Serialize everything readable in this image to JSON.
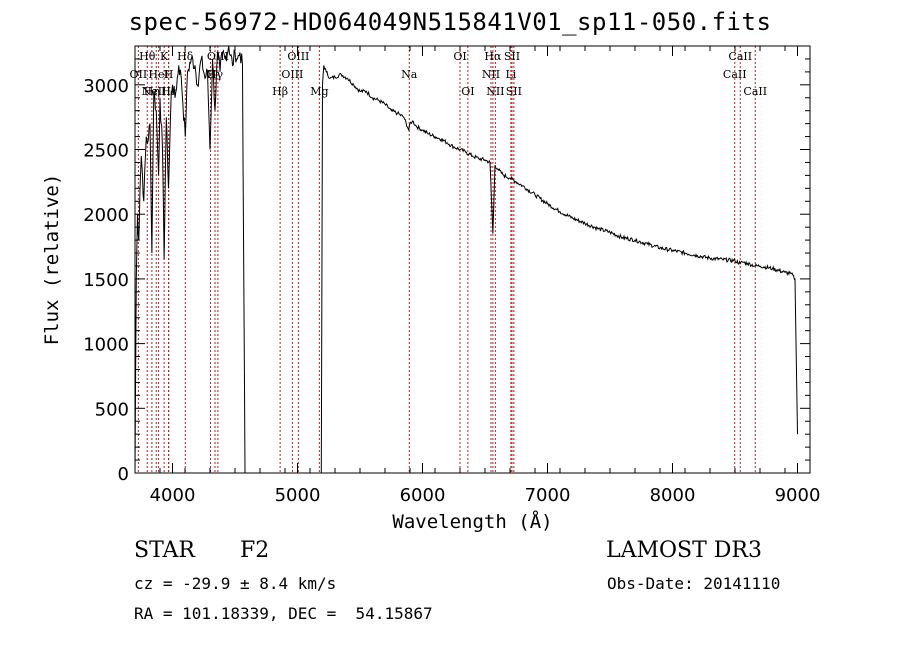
{
  "chart_data": {
    "type": "line",
    "title": "spec-56972-HD064049N515841V01_sp11-050.fits",
    "xlabel": "Wavelength (Å)",
    "ylabel": "Flux (relative)",
    "xlim": [
      3700,
      9100
    ],
    "ylim": [
      0,
      3300
    ],
    "xticks": [
      4000,
      5000,
      6000,
      7000,
      8000,
      9000
    ],
    "yticks": [
      0,
      500,
      1000,
      1500,
      2000,
      2500,
      3000
    ],
    "series": [
      {
        "name": "flux",
        "x": [
          3700,
          3710,
          3720,
          3730,
          3740,
          3750,
          3760,
          3770,
          3790,
          3800,
          3820,
          3835,
          3850,
          3870,
          3889,
          3900,
          3920,
          3933,
          3950,
          3968,
          3990,
          4000,
          4020,
          4050,
          4070,
          4102,
          4120,
          4150,
          4180,
          4200,
          4230,
          4260,
          4280,
          4300,
          4320,
          4340,
          4360,
          4380,
          4400,
          4420,
          4450,
          4480,
          4500,
          4520,
          4540,
          4560,
          4570,
          4580,
          5190,
          5200,
          5210,
          5230,
          5260,
          5300,
          5350,
          5400,
          5450,
          5500,
          5550,
          5600,
          5650,
          5700,
          5750,
          5800,
          5850,
          5890,
          5900,
          5920,
          5950,
          6000,
          6050,
          6100,
          6150,
          6200,
          6250,
          6300,
          6350,
          6400,
          6450,
          6500,
          6540,
          6563,
          6580,
          6600,
          6650,
          6700,
          6750,
          6800,
          6900,
          7000,
          7100,
          7200,
          7300,
          7400,
          7500,
          7600,
          7700,
          7800,
          7900,
          8000,
          8100,
          8200,
          8300,
          8400,
          8500,
          8542,
          8560,
          8600,
          8662,
          8700,
          8800,
          8900,
          8950,
          8980,
          9000
        ],
        "values": [
          0,
          1500,
          2000,
          1800,
          2200,
          2450,
          2300,
          2100,
          2600,
          2550,
          2700,
          1700,
          2950,
          2800,
          2300,
          2900,
          2500,
          1650,
          2750,
          2200,
          2950,
          3000,
          2900,
          3150,
          3050,
          2600,
          3100,
          3200,
          3150,
          3000,
          3200,
          3050,
          3100,
          2500,
          3200,
          2800,
          3250,
          3100,
          3250,
          3200,
          3300,
          3150,
          3250,
          3200,
          3250,
          3150,
          1500,
          0,
          0,
          3000,
          3150,
          3100,
          3050,
          3060,
          3080,
          3050,
          3000,
          2950,
          2950,
          2900,
          2880,
          2850,
          2800,
          2780,
          2750,
          2650,
          2700,
          2720,
          2680,
          2650,
          2620,
          2600,
          2580,
          2550,
          2520,
          2500,
          2480,
          2450,
          2430,
          2420,
          2400,
          1850,
          2380,
          2350,
          2300,
          2280,
          2250,
          2220,
          2150,
          2080,
          2020,
          1970,
          1930,
          1890,
          1860,
          1820,
          1800,
          1770,
          1740,
          1720,
          1700,
          1680,
          1660,
          1650,
          1640,
          1620,
          1630,
          1620,
          1600,
          1600,
          1580,
          1550,
          1540,
          1500,
          300
        ]
      }
    ],
    "lines": [
      {
        "wl": 3727,
        "label": "OII",
        "row": 1,
        "color": "#b22222"
      },
      {
        "wl": 3798,
        "label": "Hθ",
        "row": 0,
        "color": "#b22222"
      },
      {
        "wl": 3835,
        "label": "Hη",
        "row": 2,
        "color": "#b22222"
      },
      {
        "wl": 3870,
        "label": "NeIII",
        "row": 2,
        "color": "#b22222"
      },
      {
        "wl": 3889,
        "label": "HeI",
        "row": 1,
        "color": "#b22222"
      },
      {
        "wl": 3933,
        "label": "K",
        "row": 0,
        "color": "#b22222"
      },
      {
        "wl": 3968,
        "label": "H",
        "row": 1,
        "color": "#b22222"
      },
      {
        "wl": 3970,
        "label": "Hε",
        "row": 2,
        "color": "#b22222"
      },
      {
        "wl": 4102,
        "label": "Hδ",
        "row": 0,
        "color": "#b22222"
      },
      {
        "wl": 4304,
        "label": "G",
        "row": 1,
        "color": "#b22222"
      },
      {
        "wl": 4340,
        "label": "Hγ",
        "row": 1,
        "color": "#b22222"
      },
      {
        "wl": 4363,
        "label": "OIII",
        "row": 0,
        "color": "#b22222"
      },
      {
        "wl": 4861,
        "label": "Hβ",
        "row": 2,
        "color": "#b22222"
      },
      {
        "wl": 4959,
        "label": "OIII",
        "row": 1,
        "color": "#b22222"
      },
      {
        "wl": 5007,
        "label": "OIII",
        "row": 0,
        "color": "#b22222"
      },
      {
        "wl": 5175,
        "label": "Mg",
        "row": 2,
        "color": "#b22222"
      },
      {
        "wl": 5894,
        "label": "Na",
        "row": 1,
        "color": "#b22222"
      },
      {
        "wl": 6300,
        "label": "OI",
        "row": 0,
        "color": "#b22222"
      },
      {
        "wl": 6363,
        "label": "OI",
        "row": 2,
        "color": "#b22222"
      },
      {
        "wl": 6548,
        "label": "NII",
        "row": 1,
        "color": "#b22222"
      },
      {
        "wl": 6563,
        "label": "Hα",
        "row": 0,
        "color": "#b22222"
      },
      {
        "wl": 6583,
        "label": "NII",
        "row": 2,
        "color": "#b22222"
      },
      {
        "wl": 6707,
        "label": "Li",
        "row": 1,
        "color": "#b22222"
      },
      {
        "wl": 6716,
        "label": "SII",
        "row": 0,
        "color": "#b22222"
      },
      {
        "wl": 6731,
        "label": "SII",
        "row": 2,
        "color": "#b22222"
      },
      {
        "wl": 8498,
        "label": "CaII",
        "row": 1,
        "color": "#b22222"
      },
      {
        "wl": 8542,
        "label": "CaII",
        "row": 0,
        "color": "#b22222"
      },
      {
        "wl": 8662,
        "label": "CaII",
        "row": 2,
        "color": "#b22222"
      }
    ]
  },
  "info": {
    "class": "STAR",
    "subclass": "F2",
    "survey": "LAMOST DR3",
    "cz": "cz = -29.9 ± 8.4 km/s",
    "obsdate": "Obs-Date: 20141110",
    "radec": "RA = 101.18339, DEC =  54.15867"
  }
}
